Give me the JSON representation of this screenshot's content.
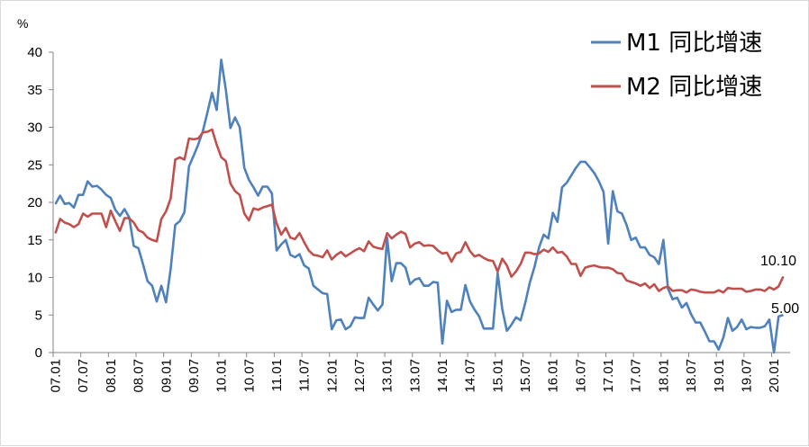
{
  "chart_data": {
    "type": "line",
    "title": "",
    "xlabel": "",
    "ylabel": "%",
    "ylim": [
      0,
      40
    ],
    "yticks": [
      "0",
      "5",
      "10",
      "15",
      "20",
      "25",
      "30",
      "35",
      "40"
    ],
    "xticks": [
      "07.01",
      "07.07",
      "08.01",
      "08.07",
      "09.01",
      "09.07",
      "10.01",
      "10.07",
      "11.01",
      "11.07",
      "12.01",
      "12.07",
      "13.01",
      "13.07",
      "14.01",
      "14.07",
      "15.01",
      "15.07",
      "16.01",
      "16.07",
      "17.01",
      "17.07",
      "18.01",
      "18.07",
      "19.01",
      "19.07",
      "20.01"
    ],
    "legend_position": "top-right",
    "series": [
      {
        "name": "M1 同比增速",
        "color": "#4F81BD",
        "values": [
          19.8,
          20.9,
          19.8,
          19.9,
          19.3,
          21.0,
          21.0,
          22.8,
          22.1,
          22.2,
          21.7,
          21.0,
          20.6,
          19.0,
          18.2,
          19.1,
          18.0,
          14.2,
          13.9,
          11.8,
          9.5,
          8.9,
          6.8,
          8.9,
          6.7,
          11.1,
          17.0,
          17.5,
          18.7,
          24.8,
          26.2,
          27.7,
          29.5,
          32.0,
          34.6,
          32.3,
          39.0,
          35.0,
          29.9,
          31.3,
          30.0,
          24.6,
          23.0,
          22.0,
          20.9,
          22.1,
          22.1,
          21.2,
          13.6,
          14.4,
          15.0,
          13.0,
          12.7,
          13.1,
          11.6,
          11.2,
          8.9,
          8.4,
          7.9,
          7.8,
          3.1,
          4.3,
          4.4,
          3.1,
          3.5,
          4.7,
          4.6,
          4.6,
          7.3,
          6.4,
          5.6,
          6.4,
          15.3,
          9.5,
          11.9,
          11.9,
          11.3,
          9.1,
          9.7,
          9.9,
          8.9,
          8.9,
          9.4,
          9.3,
          1.2,
          6.9,
          5.4,
          5.7,
          5.7,
          9.0,
          6.8,
          5.7,
          4.8,
          3.2,
          3.2,
          3.2,
          10.6,
          5.8,
          2.9,
          3.7,
          4.7,
          4.3,
          6.6,
          9.3,
          11.4,
          14.0,
          15.7,
          15.2,
          18.6,
          17.4,
          22.0,
          22.6,
          23.6,
          24.6,
          25.4,
          25.4,
          24.7,
          23.9,
          22.8,
          21.4,
          14.5,
          21.5,
          18.8,
          18.5,
          17.0,
          15.0,
          15.3,
          14.0,
          14.0,
          13.0,
          12.7,
          11.8,
          15.0,
          8.5,
          7.1,
          7.3,
          6.0,
          6.6,
          5.1,
          4.0,
          4.0,
          2.8,
          1.5,
          1.5,
          0.4,
          2.0,
          4.6,
          2.9,
          3.4,
          4.4,
          3.1,
          3.4,
          3.3,
          3.3,
          3.5,
          4.4,
          0.0,
          4.8,
          5.0
        ]
      },
      {
        "name": "M2 同比增速",
        "color": "#C0504D",
        "values": [
          15.9,
          17.8,
          17.3,
          17.1,
          16.7,
          17.1,
          18.5,
          18.1,
          18.5,
          18.5,
          18.5,
          16.7,
          18.9,
          17.5,
          16.2,
          17.9,
          17.9,
          17.3,
          16.3,
          16.0,
          15.3,
          15.0,
          14.8,
          17.8,
          18.8,
          20.5,
          25.7,
          26.0,
          25.7,
          28.5,
          28.4,
          28.5,
          29.3,
          29.4,
          29.7,
          27.7,
          26.0,
          25.5,
          22.5,
          21.5,
          21.0,
          18.5,
          17.6,
          19.2,
          19.0,
          19.3,
          19.5,
          19.7,
          17.2,
          15.7,
          16.6,
          15.3,
          15.1,
          15.9,
          14.7,
          13.6,
          13.0,
          12.9,
          12.7,
          13.6,
          12.4,
          13.0,
          13.4,
          12.8,
          13.2,
          13.6,
          13.9,
          13.5,
          14.8,
          14.1,
          13.9,
          13.8,
          15.9,
          15.2,
          15.7,
          16.1,
          15.8,
          14.0,
          14.5,
          14.7,
          14.2,
          14.3,
          14.2,
          13.6,
          13.2,
          13.3,
          12.1,
          13.2,
          13.4,
          14.7,
          13.5,
          12.8,
          13.0,
          12.6,
          12.3,
          12.2,
          10.8,
          12.5,
          11.6,
          10.1,
          10.8,
          11.8,
          13.3,
          13.3,
          13.1,
          13.2,
          13.7,
          13.4,
          14.0,
          13.3,
          13.4,
          12.8,
          11.8,
          11.8,
          10.2,
          11.3,
          11.5,
          11.6,
          11.4,
          11.3,
          11.3,
          11.1,
          10.6,
          10.5,
          9.6,
          9.4,
          9.2,
          8.9,
          9.2,
          8.6,
          9.1,
          8.2,
          8.6,
          8.8,
          8.2,
          8.3,
          8.3,
          8.0,
          8.4,
          8.3,
          8.1,
          8.0,
          8.0,
          8.0,
          8.3,
          8.0,
          8.6,
          8.5,
          8.5,
          8.5,
          8.1,
          8.2,
          8.4,
          8.4,
          8.2,
          8.7,
          8.4,
          8.8,
          10.1
        ]
      }
    ],
    "annotations": [
      "10.10",
      "5.00"
    ]
  }
}
